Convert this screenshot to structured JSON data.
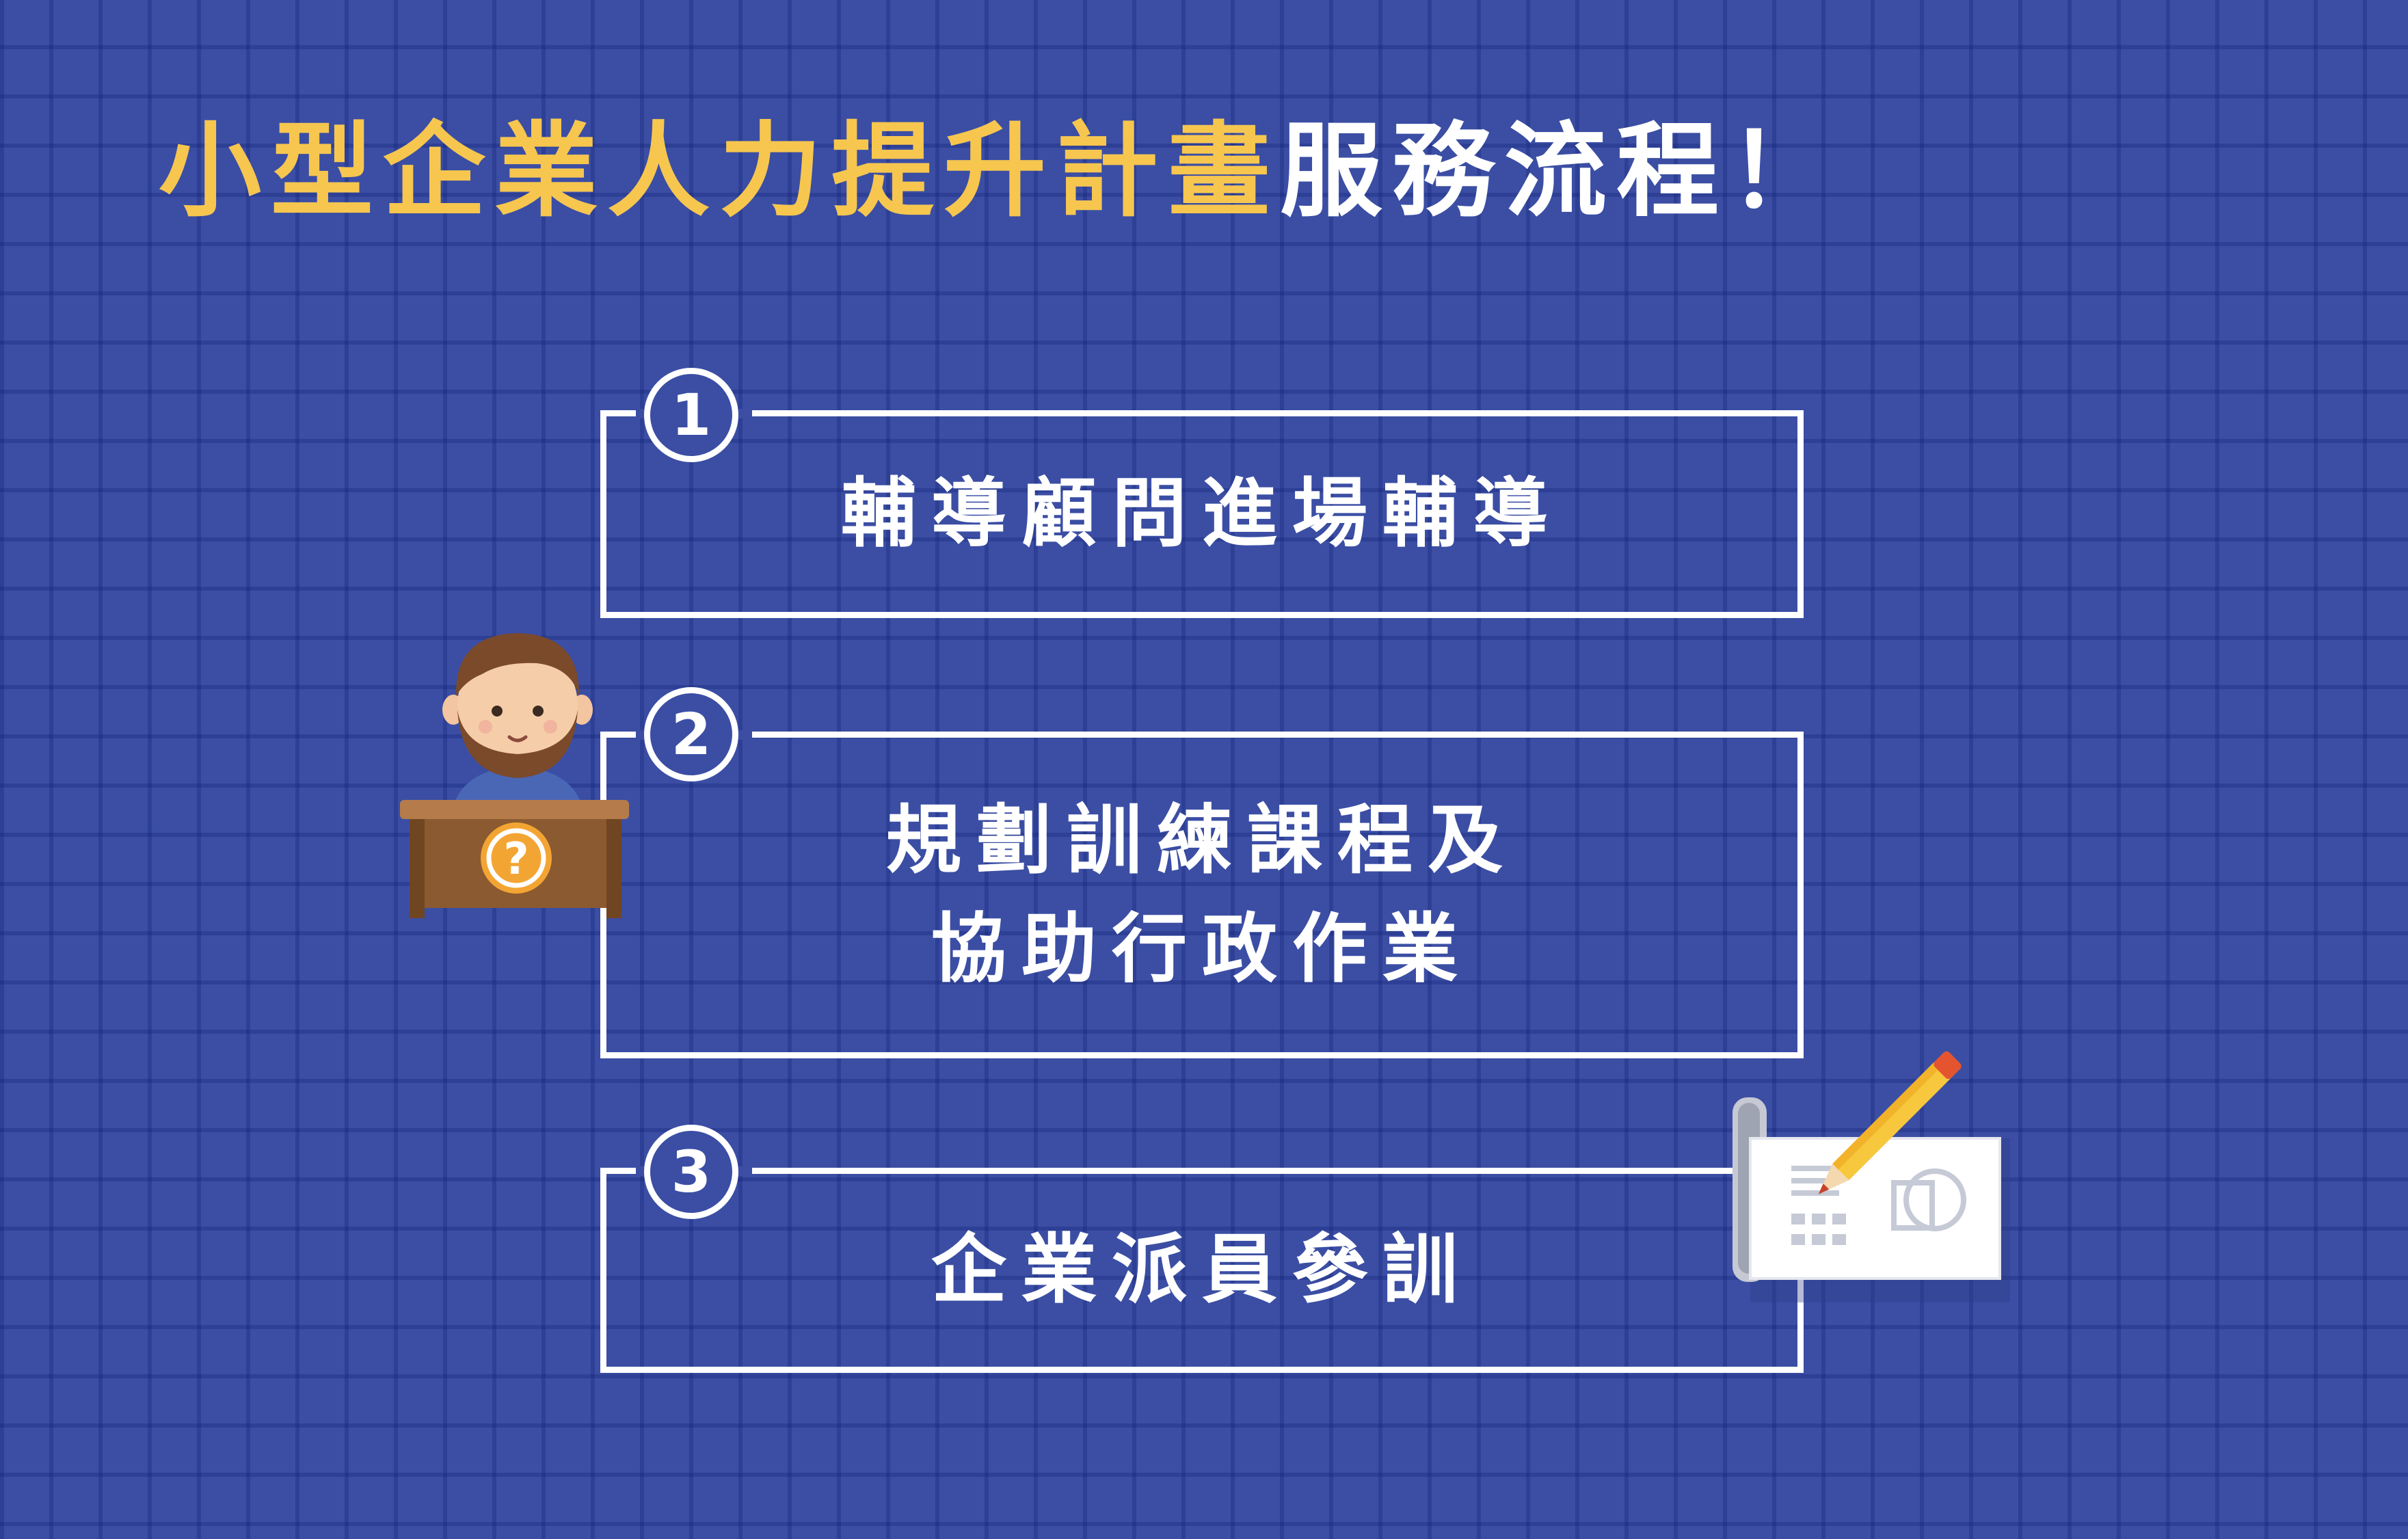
{
  "title": {
    "accent": "小型企業人力提升計畫",
    "rest": "服務流程！"
  },
  "steps": [
    {
      "number": "1",
      "text": "輔導顧問進場輔導"
    },
    {
      "number": "2",
      "line1": "規劃訓練課程及",
      "line2": "協助行政作業"
    },
    {
      "number": "3",
      "text": "企業派員參訓"
    }
  ],
  "icons": {
    "consultant": "consultant-at-desk-icon",
    "question": "question-mark-icon",
    "blueprint": "blueprint-pencil-icon"
  },
  "colors": {
    "background": "#3b4ea4",
    "accent": "#f6c64f",
    "text": "#ffffff"
  }
}
